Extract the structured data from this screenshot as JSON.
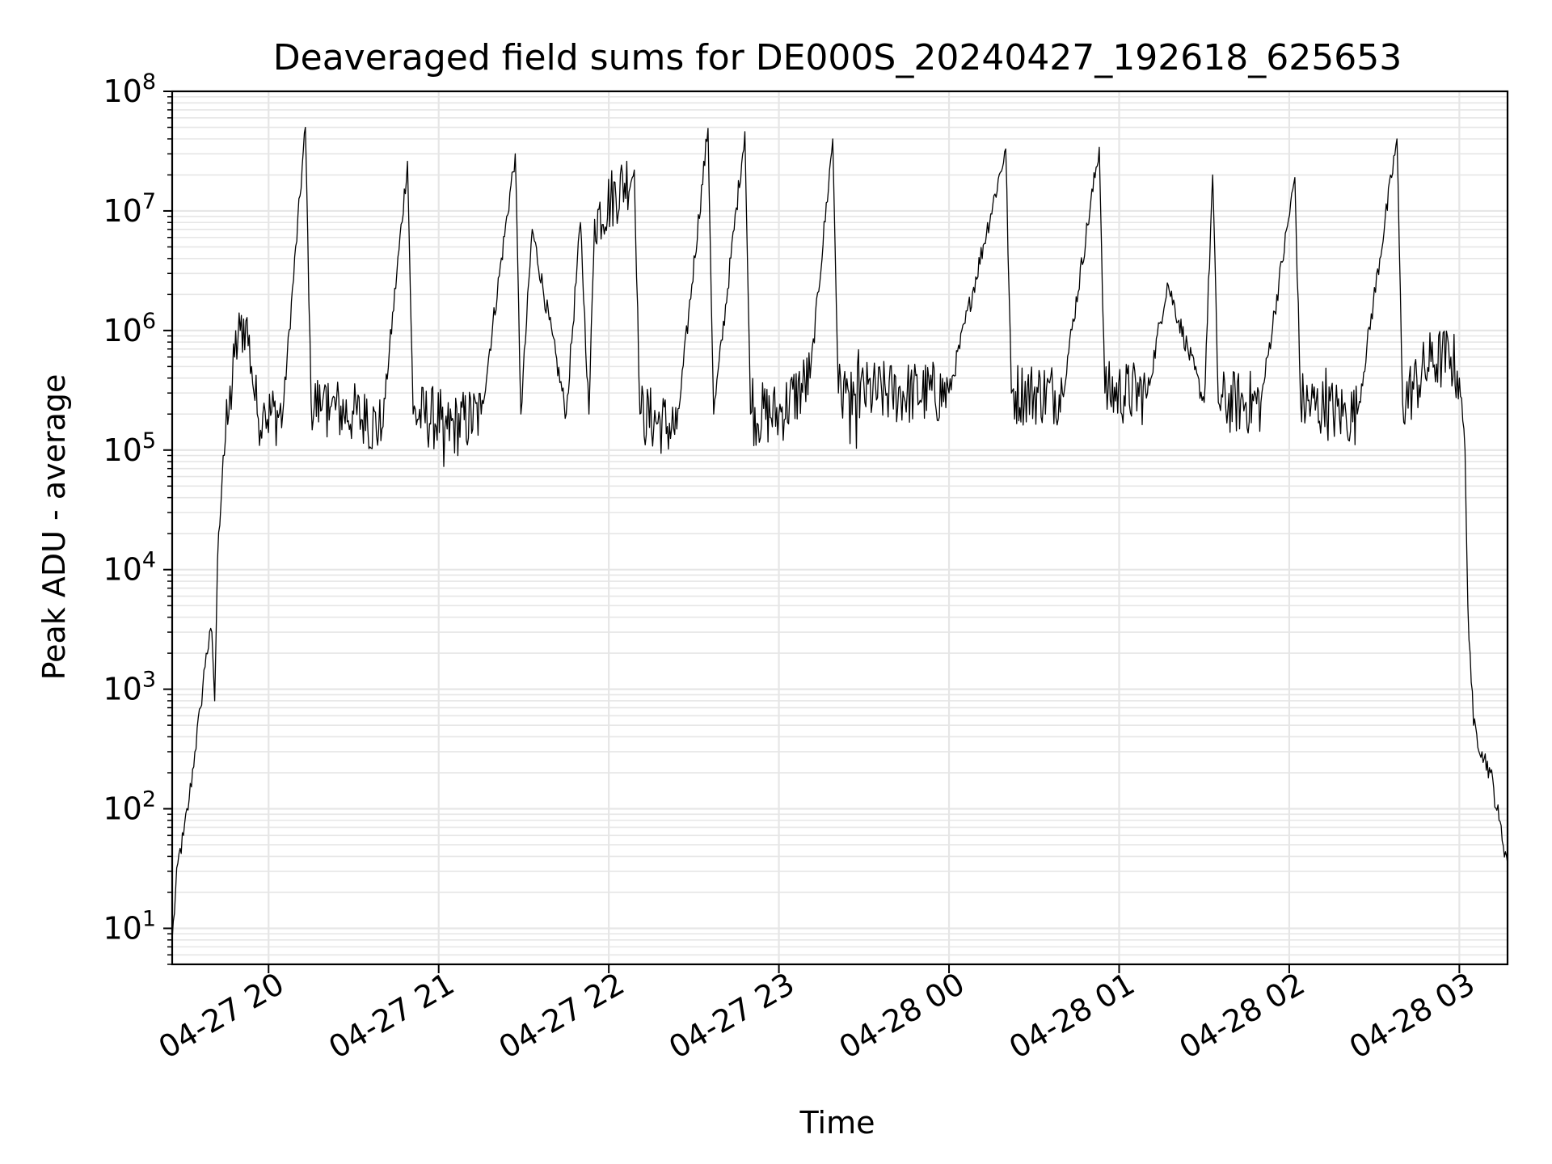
{
  "chart_data": {
    "type": "line",
    "title": "Deaveraged field sums for DE000S_20240427_192618_625653",
    "xlabel": "Time",
    "ylabel": "Peak ADU - average",
    "y_scale": "log",
    "ylim": [
      5,
      100000000
    ],
    "xlim": [
      "2024-04-27 19:26",
      "2024-04-28 03:17"
    ],
    "grid": true,
    "line_color": "#000000",
    "grid_color": "#e6e6e6",
    "x_ticks": [
      {
        "t": "2024-04-27 20:00",
        "label": "04-27 20"
      },
      {
        "t": "2024-04-27 21:00",
        "label": "04-27 21"
      },
      {
        "t": "2024-04-27 22:00",
        "label": "04-27 22"
      },
      {
        "t": "2024-04-27 23:00",
        "label": "04-27 23"
      },
      {
        "t": "2024-04-28 00:00",
        "label": "04-28 00"
      },
      {
        "t": "2024-04-28 01:00",
        "label": "04-28 01"
      },
      {
        "t": "2024-04-28 02:00",
        "label": "04-28 02"
      },
      {
        "t": "2024-04-28 03:00",
        "label": "04-28 03"
      }
    ],
    "y_ticks": [
      {
        "value": 10,
        "base": "10",
        "exp": "1"
      },
      {
        "value": 100,
        "base": "10",
        "exp": "2"
      },
      {
        "value": 1000,
        "base": "10",
        "exp": "3"
      },
      {
        "value": 10000,
        "base": "10",
        "exp": "4"
      },
      {
        "value": 100000,
        "base": "10",
        "exp": "5"
      },
      {
        "value": 1000000,
        "base": "10",
        "exp": "6"
      },
      {
        "value": 10000000,
        "base": "10",
        "exp": "7"
      },
      {
        "value": 100000000,
        "base": "10",
        "exp": "8"
      }
    ],
    "series": [
      {
        "x": [
          "2024-04-27 19:26",
          "2024-04-27 19:28",
          "2024-04-27 19:30",
          "2024-04-27 19:32",
          "2024-04-27 19:34",
          "2024-04-27 19:36",
          "2024-04-27 19:38",
          "2024-04-27 19:40",
          "2024-04-27 19:41",
          "2024-04-27 19:42",
          "2024-04-27 19:44",
          "2024-04-27 19:46",
          "2024-04-27 19:48",
          "2024-04-27 19:50",
          "2024-04-27 19:52",
          "2024-04-27 19:54",
          "2024-04-27 19:56",
          "2024-04-27 19:58",
          "2024-04-27 20:05",
          "2024-04-27 20:13",
          "2024-04-27 20:15",
          "2024-04-27 20:30",
          "2024-04-27 20:40",
          "2024-04-27 20:49",
          "2024-04-27 20:51",
          "2024-04-27 21:01",
          "2024-04-27 21:03",
          "2024-04-27 21:15",
          "2024-04-27 21:27",
          "2024-04-27 21:29",
          "2024-04-27 21:33",
          "2024-04-27 21:45",
          "2024-04-27 21:50",
          "2024-04-27 21:53",
          "2024-04-27 21:55",
          "2024-04-27 22:09",
          "2024-04-27 22:11",
          "2024-04-27 22:24",
          "2024-04-27 22:35",
          "2024-04-27 22:37",
          "2024-04-27 22:48",
          "2024-04-27 22:50",
          "2024-04-27 23:00",
          "2024-04-27 23:11",
          "2024-04-27 23:19",
          "2024-04-27 23:21",
          "2024-04-27 23:40",
          "2024-04-28 00:00",
          "2024-04-28 00:20",
          "2024-04-28 00:22",
          "2024-04-28 00:40",
          "2024-04-28 00:53",
          "2024-04-28 00:55",
          "2024-04-28 01:10",
          "2024-04-28 01:17",
          "2024-04-28 01:30",
          "2024-04-28 01:33",
          "2024-04-28 01:35",
          "2024-04-28 01:50",
          "2024-04-28 02:02",
          "2024-04-28 02:04",
          "2024-04-28 02:20",
          "2024-04-28 02:24",
          "2024-04-28 02:38",
          "2024-04-28 02:40",
          "2024-04-28 02:50",
          "2024-04-28 02:57",
          "2024-04-28 03:00",
          "2024-04-28 03:02",
          "2024-04-28 03:03",
          "2024-04-28 03:05",
          "2024-04-28 03:08",
          "2024-04-28 03:11",
          "2024-04-28 03:14",
          "2024-04-28 03:17"
        ],
        "y": [
          8,
          35,
          60,
          120,
          300,
          700,
          2000,
          3000,
          800,
          12000,
          90000,
          200000,
          600000,
          1000000,
          1200000,
          500000,
          200000,
          200000,
          200000,
          50000000,
          250000,
          200000,
          150000,
          26000000,
          200000,
          180000,
          150000,
          200000,
          30000000,
          200000,
          7000000,
          200000,
          8000000,
          200000,
          8500000,
          22000000,
          200000,
          150000,
          49000000,
          200000,
          46000000,
          200000,
          200000,
          400000,
          40000000,
          300000,
          300000,
          300000,
          33000000,
          300000,
          300000,
          34000000,
          300000,
          300000,
          2500000,
          250000,
          20000000,
          250000,
          250000,
          19000000,
          250000,
          200000,
          200000,
          40000000,
          250000,
          550000,
          600000,
          400000,
          100000,
          5000,
          500,
          300,
          200,
          80,
          35
        ]
      }
    ]
  }
}
